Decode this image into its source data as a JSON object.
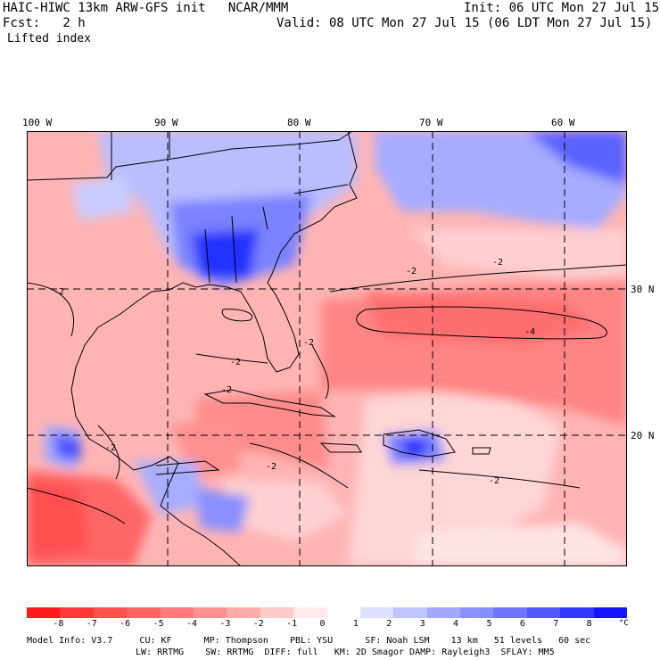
{
  "header": {
    "model_line": "HAIC-HIWC 13km ARW-GFS init   NCAR/MMM",
    "init_line": "Init: 06 UTC Mon 27 Jul 15",
    "fcst_line": "Fcst:   2 h",
    "valid_line": "Valid: 08 UTC Mon 27 Jul 15 (06 LDT Mon 27 Jul 15)",
    "field_name": "Lifted index"
  },
  "map": {
    "lon_labels": [
      "100 W",
      "90 W",
      "80 W",
      "70 W",
      "60 W"
    ],
    "lat_labels": [
      "30 N",
      "20 N"
    ],
    "contour_label": "-2",
    "contour_label_4": "-4"
  },
  "colorbar": {
    "unit": "°C",
    "labels": [
      "-8",
      "-7",
      "-6",
      "-5",
      "-4",
      "-3",
      "-2",
      "-1",
      "0",
      "1",
      "2",
      "3",
      "4",
      "5",
      "6",
      "7",
      "8"
    ],
    "colors": [
      "#ff1a1a",
      "#ff3838",
      "#ff5050",
      "#ff6464",
      "#ff7a7a",
      "#ff9090",
      "#ffabab",
      "#ffcaca",
      "#ffeaea",
      "#ffffff",
      "#dde0ff",
      "#bfc3ff",
      "#a3a8ff",
      "#8a8fff",
      "#6f75ff",
      "#5258ff",
      "#3438ff",
      "#1416ff"
    ]
  },
  "footer": {
    "line1": "Model Info: V3.7     CU: KF      MP: Thompson    PBL: YSU      SF: Noah LSM    13 km   51 levels   60 sec",
    "line2": "LW: RRTMG    SW: RRTMG  DIFF: full   KM: 2D Smagor DAMP: Rayleigh3  SFLAY: MM5"
  },
  "colors": {
    "warm_base": "#ff9e9e",
    "warm_light": "#ffc8c8",
    "cool": "#9aa2ff",
    "cool_strong": "#2030ff"
  }
}
